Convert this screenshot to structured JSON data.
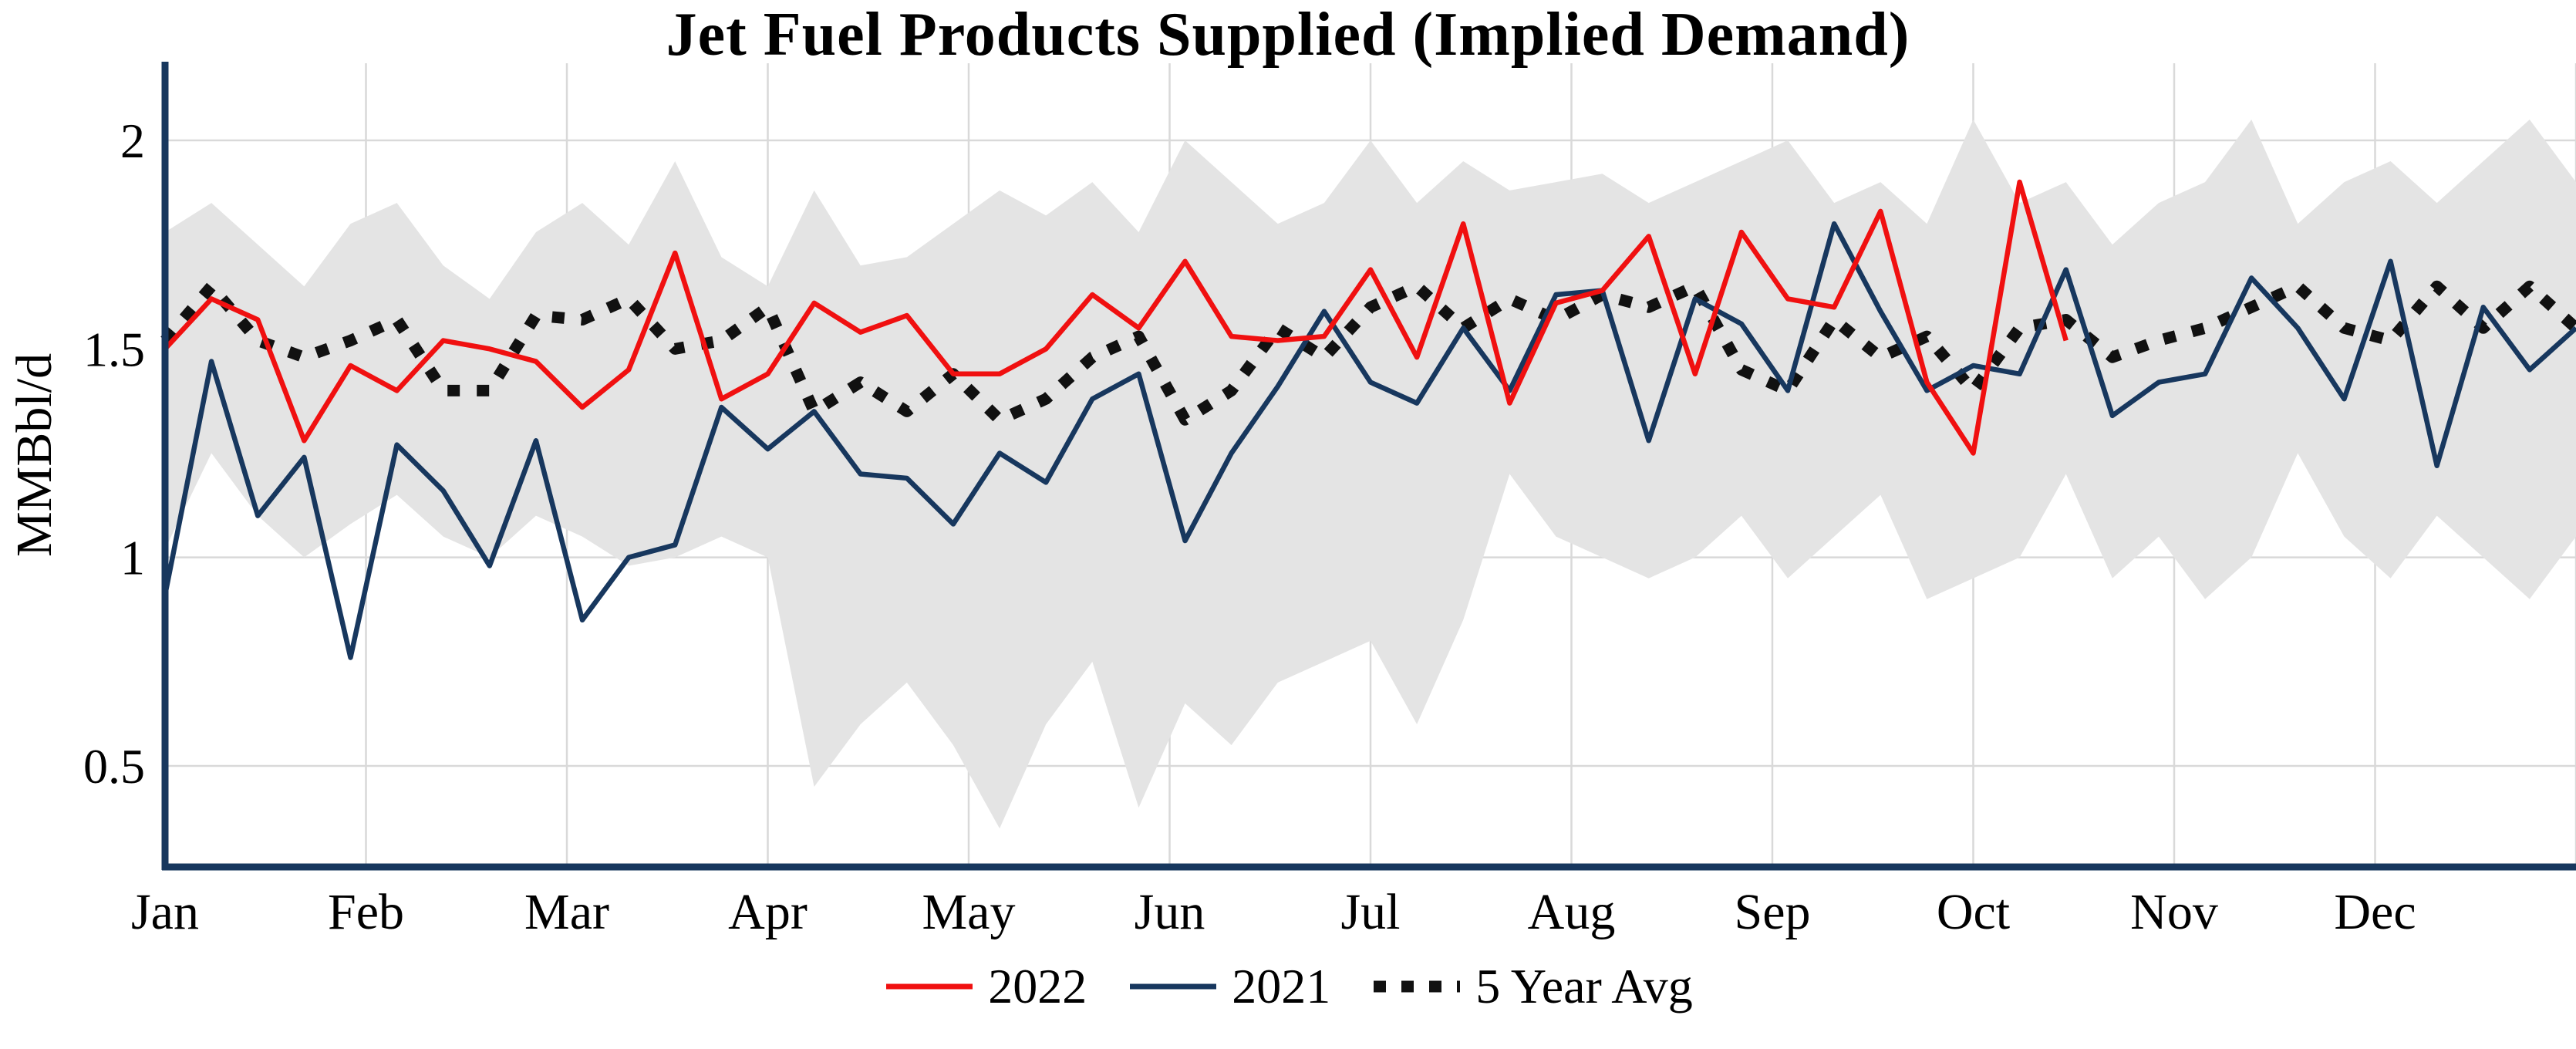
{
  "page": {
    "background": "#ffffff"
  },
  "chart_data": {
    "type": "line",
    "title": "Jet Fuel Products Supplied (Implied Demand)",
    "ylabel": "MMBbl/d",
    "x_unit": "week-of-year",
    "x_tick_labels": [
      "Jan",
      "Feb",
      "Mar",
      "Apr",
      "May",
      "Jun",
      "Jul",
      "Aug",
      "Sep",
      "Oct",
      "Nov",
      "Dec"
    ],
    "y_ticks": [
      0.5,
      1,
      1.5,
      2
    ],
    "ylim": [
      0.25,
      2.1
    ],
    "grid": true,
    "grid_color": "#d9d9d9",
    "axis_color": "#17375e",
    "legend_position": "bottom",
    "range_band": {
      "color": "#e4e4e4",
      "upper": [
        1.78,
        1.85,
        1.75,
        1.65,
        1.8,
        1.85,
        1.7,
        1.62,
        1.78,
        1.85,
        1.75,
        1.95,
        1.72,
        1.65,
        1.88,
        1.7,
        1.72,
        1.8,
        1.88,
        1.82,
        1.9,
        1.78,
        2.0,
        1.9,
        1.8,
        1.85,
        2.0,
        1.85,
        1.95,
        1.88,
        1.9,
        1.92,
        1.85,
        1.9,
        1.95,
        2.0,
        1.85,
        1.9,
        1.8,
        2.05,
        1.85,
        1.9,
        1.75,
        1.85,
        1.9,
        2.05,
        1.8,
        1.9,
        1.95,
        1.85,
        1.95,
        2.05,
        1.9
      ],
      "lower": [
        1.02,
        1.25,
        1.1,
        1.0,
        1.08,
        1.15,
        1.05,
        1.0,
        1.1,
        1.05,
        0.98,
        1.0,
        1.05,
        1.0,
        0.45,
        0.6,
        0.7,
        0.55,
        0.35,
        0.6,
        0.75,
        0.4,
        0.65,
        0.55,
        0.7,
        0.75,
        0.8,
        0.6,
        0.85,
        1.2,
        1.05,
        1.0,
        0.95,
        1.0,
        1.1,
        0.95,
        1.05,
        1.15,
        0.9,
        0.95,
        1.0,
        1.2,
        0.95,
        1.05,
        0.9,
        1.0,
        1.25,
        1.05,
        0.95,
        1.1,
        1.0,
        0.9,
        1.05
      ]
    },
    "series": [
      {
        "name": "2022",
        "color": "#f01010",
        "dash": "solid",
        "values": [
          1.5,
          1.62,
          1.57,
          1.28,
          1.46,
          1.4,
          1.52,
          1.5,
          1.47,
          1.36,
          1.45,
          1.73,
          1.38,
          1.44,
          1.61,
          1.54,
          1.58,
          1.44,
          1.44,
          1.5,
          1.63,
          1.55,
          1.71,
          1.53,
          1.52,
          1.53,
          1.69,
          1.48,
          1.8,
          1.37,
          1.61,
          1.64,
          1.77,
          1.44,
          1.78,
          1.62,
          1.6,
          1.83,
          1.42,
          1.25,
          1.9,
          1.52
        ]
      },
      {
        "name": "2021",
        "color": "#17375e",
        "dash": "solid",
        "values": [
          0.91,
          1.47,
          1.1,
          1.24,
          0.76,
          1.27,
          1.16,
          0.98,
          1.28,
          0.85,
          1.0,
          1.03,
          1.36,
          1.26,
          1.35,
          1.2,
          1.19,
          1.08,
          1.25,
          1.18,
          1.38,
          1.44,
          1.04,
          1.25,
          1.41,
          1.59,
          1.42,
          1.37,
          1.55,
          1.4,
          1.63,
          1.64,
          1.28,
          1.62,
          1.56,
          1.4,
          1.8,
          1.59,
          1.4,
          1.46,
          1.44,
          1.69,
          1.34,
          1.42,
          1.44,
          1.67,
          1.55,
          1.38,
          1.71,
          1.22,
          1.6,
          1.45,
          1.55
        ]
      },
      {
        "name": "5 Year Avg",
        "color": "#111111",
        "dash": "dotted",
        "values": [
          1.52,
          1.65,
          1.52,
          1.48,
          1.52,
          1.57,
          1.4,
          1.4,
          1.58,
          1.57,
          1.62,
          1.5,
          1.52,
          1.6,
          1.35,
          1.42,
          1.35,
          1.44,
          1.33,
          1.38,
          1.48,
          1.53,
          1.33,
          1.4,
          1.55,
          1.48,
          1.6,
          1.65,
          1.55,
          1.62,
          1.57,
          1.63,
          1.6,
          1.65,
          1.45,
          1.4,
          1.57,
          1.48,
          1.53,
          1.4,
          1.55,
          1.57,
          1.48,
          1.52,
          1.55,
          1.6,
          1.65,
          1.55,
          1.52,
          1.65,
          1.55,
          1.65,
          1.55
        ]
      }
    ]
  }
}
